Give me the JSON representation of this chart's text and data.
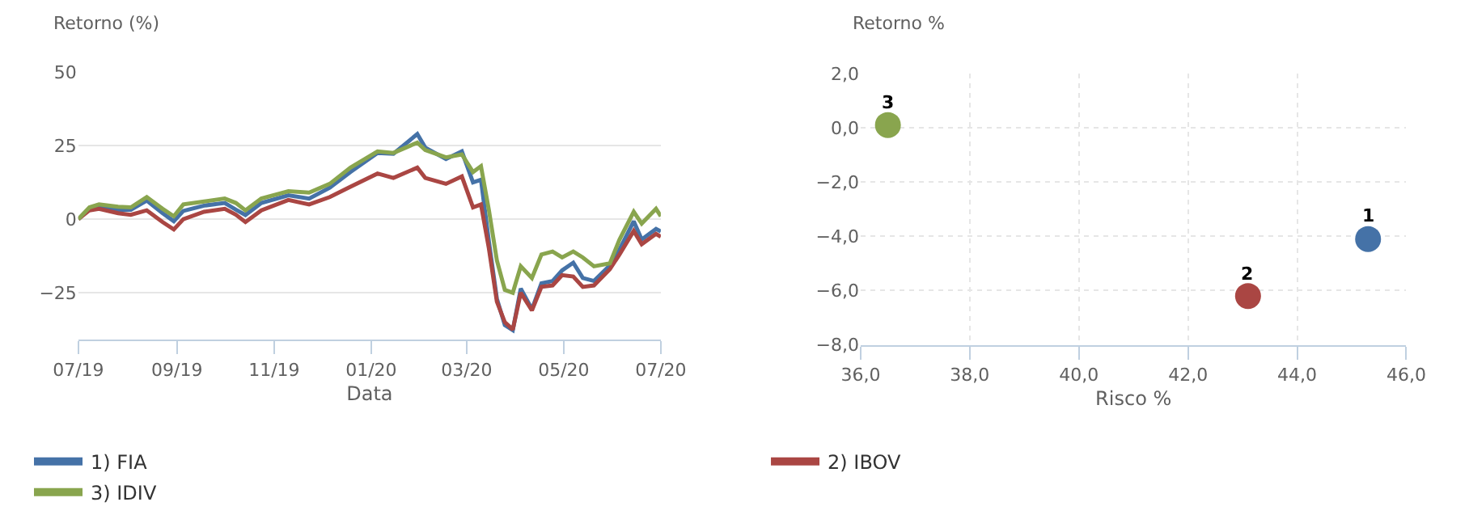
{
  "chart_data": [
    {
      "type": "line",
      "ylabel": "Retorno (%)",
      "xlabel": "Data",
      "xlim": [
        "2019-07-01",
        "2020-07-01"
      ],
      "ylim": [
        -41,
        50
      ],
      "xticks": [
        {
          "value": "2019-07-01",
          "label": "07/19"
        },
        {
          "value": "2019-09-01",
          "label": "09/19"
        },
        {
          "value": "2019-11-01",
          "label": "11/19"
        },
        {
          "value": "2020-01-01",
          "label": "01/20"
        },
        {
          "value": "2020-03-01",
          "label": "03/20"
        },
        {
          "value": "2020-05-01",
          "label": "05/20"
        },
        {
          "value": "2020-07-01",
          "label": "07/20"
        }
      ],
      "yticks": [
        -25,
        0,
        25,
        50
      ],
      "grid": "y",
      "legend": "bottom",
      "line_style": "solid",
      "x": [
        "2019-07-01",
        "2019-07-08",
        "2019-07-14",
        "2019-07-26",
        "2019-08-03",
        "2019-08-13",
        "2019-08-23",
        "2019-08-30",
        "2019-09-05",
        "2019-09-18",
        "2019-10-01",
        "2019-10-08",
        "2019-10-14",
        "2019-10-24",
        "2019-11-10",
        "2019-11-23",
        "2019-12-06",
        "2019-12-19",
        "2020-01-05",
        "2020-01-15",
        "2020-01-30",
        "2020-02-04",
        "2020-02-17",
        "2020-02-27",
        "2020-03-05",
        "2020-03-10",
        "2020-03-15",
        "2020-03-20",
        "2020-03-25",
        "2020-03-30",
        "2020-04-04",
        "2020-04-11",
        "2020-04-17",
        "2020-04-24",
        "2020-04-30",
        "2020-05-07",
        "2020-05-13",
        "2020-05-20",
        "2020-05-30",
        "2020-06-05",
        "2020-06-14",
        "2020-06-19",
        "2020-06-28",
        "2020-07-01"
      ],
      "series": [
        {
          "name": "1) FIA",
          "color": "#4572a7",
          "values": [
            0,
            3.7,
            4.6,
            3.2,
            3.2,
            6.3,
            2,
            -0.7,
            2.8,
            4.6,
            5.5,
            3.2,
            1.4,
            5.5,
            8.1,
            7,
            10.7,
            16,
            22.5,
            22.2,
            28.9,
            24.3,
            20.4,
            23,
            12.5,
            13.4,
            -7.7,
            -27,
            -36,
            -37.7,
            -23.6,
            -30.6,
            -21.8,
            -21,
            -17.4,
            -14.8,
            -20,
            -21,
            -15.7,
            -10.4,
            -0.7,
            -6.9,
            -3.3,
            -4.2
          ]
        },
        {
          "name": "2) IBOV",
          "color": "#aa4643",
          "values": [
            0,
            3,
            3.5,
            2,
            1.5,
            3,
            -1,
            -3.5,
            0,
            2.5,
            3.5,
            1.5,
            -1,
            3,
            6.5,
            5,
            7.5,
            11,
            15.5,
            14,
            17.5,
            14,
            12,
            14.5,
            4,
            5,
            -10,
            -28,
            -35,
            -37.5,
            -25,
            -31,
            -23,
            -22.5,
            -19,
            -19.5,
            -23,
            -22.5,
            -17,
            -12,
            -4,
            -8.5,
            -5,
            -6
          ]
        },
        {
          "name": "3) IDIV",
          "color": "#89a54e",
          "values": [
            0,
            4,
            5,
            4.2,
            4,
            7.5,
            3.5,
            1,
            5,
            6,
            7,
            5.5,
            3,
            7,
            9.5,
            9,
            12,
            17.5,
            23,
            22.5,
            26,
            23.5,
            21,
            22,
            16,
            18,
            3,
            -14,
            -24,
            -25,
            -16,
            -20,
            -12,
            -11,
            -13,
            -11,
            -13,
            -16,
            -15,
            -7,
            2.5,
            -1.5,
            3.5,
            1
          ]
        }
      ]
    },
    {
      "type": "scatter",
      "ylabel": "Retorno %",
      "xlabel": "Risco %",
      "xlim": [
        36,
        46
      ],
      "ylim": [
        -8,
        2
      ],
      "xticks": [
        {
          "value": 36,
          "label": "36,0"
        },
        {
          "value": 38,
          "label": "38,0"
        },
        {
          "value": 40,
          "label": "40,0"
        },
        {
          "value": 42,
          "label": "42,0"
        },
        {
          "value": 44,
          "label": "44,0"
        },
        {
          "value": 46,
          "label": "46,0"
        }
      ],
      "yticks": [
        {
          "value": -8,
          "label": "−8,0"
        },
        {
          "value": -6,
          "label": "−6,0"
        },
        {
          "value": -4,
          "label": "−4,0"
        },
        {
          "value": -2,
          "label": "−2,0"
        },
        {
          "value": 0,
          "label": "0,0"
        },
        {
          "value": 2,
          "label": "2,0"
        }
      ],
      "grid": true,
      "marker": "circle",
      "series": [
        {
          "color": "#4572a7",
          "x": [
            45.3
          ],
          "values": [
            -4.1
          ]
        },
        {
          "color": "#aa4643",
          "x": [
            43.1
          ],
          "values": [
            -6.2
          ]
        },
        {
          "color": "#89a54e",
          "x": [
            36.5
          ],
          "values": [
            0.1
          ]
        }
      ],
      "annotations": [
        {
          "text": "1",
          "x": 45.3,
          "y": -4.1
        },
        {
          "text": "2",
          "x": 43.1,
          "y": -6.2
        },
        {
          "text": "3",
          "x": 36.5,
          "y": 0.1
        }
      ]
    }
  ]
}
